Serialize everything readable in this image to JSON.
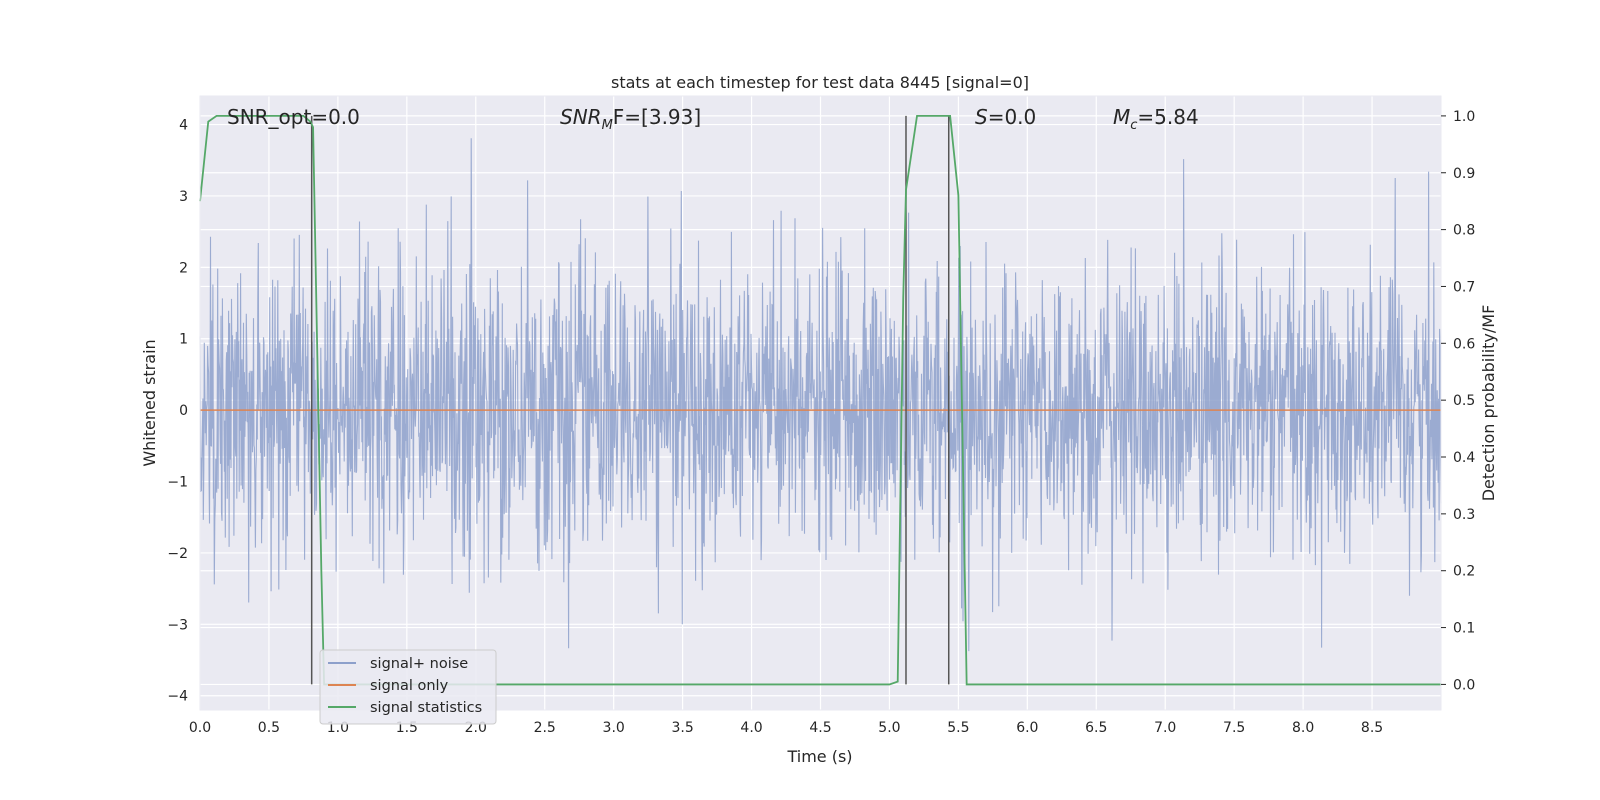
{
  "chart_data": {
    "type": "line",
    "title": "stats at each timestep for test data 8445 [signal=0]",
    "xlabel": "Time (s)",
    "ylabel": "Whitened strain",
    "ylabel_right": "Detection probability/MF",
    "xlim": [
      0.0,
      9.0
    ],
    "ylim": [
      -4.2,
      4.4
    ],
    "ylim_right": [
      -0.045,
      1.035
    ],
    "xticks": [
      "0.0",
      "0.5",
      "1.0",
      "1.5",
      "2.0",
      "2.5",
      "3.0",
      "3.5",
      "4.0",
      "4.5",
      "5.0",
      "5.5",
      "6.0",
      "6.5",
      "7.0",
      "7.5",
      "8.0",
      "8.5"
    ],
    "yticks": [
      "4",
      "3",
      "2",
      "1",
      "0",
      "−1",
      "−2",
      "−3",
      "−4"
    ],
    "yticks_right": [
      "1.0",
      "0.9",
      "0.8",
      "0.7",
      "0.6",
      "0.5",
      "0.4",
      "0.3",
      "0.2",
      "0.1",
      "0.0"
    ],
    "grid": true,
    "legend_position": "lower-left",
    "annotations": {
      "snr_opt": "SNR_opt=0.0",
      "snr_mf_prefix": "SNR",
      "snr_mf_sub": "M",
      "snr_mf_suffix": "F=[3.93]",
      "s_italic": "S",
      "s_value": "=0.0",
      "mc_prefix": "M",
      "mc_sub": "c",
      "mc_value": "=5.84"
    },
    "series": [
      {
        "name": "signal+ noise",
        "color": "#8da0cb",
        "axis": "left",
        "description_range": [
          -3.7,
          4.0
        ],
        "sample_rate_hz": 1024
      },
      {
        "name": "signal only",
        "color": "#dd8452",
        "axis": "left",
        "x": [
          0.0,
          9.0
        ],
        "y": [
          0.0,
          0.0
        ]
      },
      {
        "name": "signal statistics",
        "color": "#55a868",
        "axis": "right",
        "x": [
          0.0,
          0.06,
          0.12,
          0.2,
          0.5,
          0.75,
          0.8,
          0.82,
          0.88,
          0.9,
          1.0,
          2.0,
          3.0,
          4.0,
          5.0,
          5.06,
          5.1,
          5.12,
          5.2,
          5.44,
          5.5,
          5.56,
          5.6,
          6.0,
          7.0,
          8.0,
          9.0
        ],
        "y": [
          0.85,
          0.99,
          1.0,
          1.0,
          1.0,
          1.0,
          0.99,
          0.98,
          0.2,
          0.0,
          0.0,
          0.0,
          0.0,
          0.0,
          0.0,
          0.005,
          0.68,
          0.87,
          1.0,
          1.0,
          0.86,
          0.0,
          0.0,
          0.0,
          0.0,
          0.0,
          0.0
        ]
      }
    ],
    "vlines": [
      0.81,
      5.12,
      5.43
    ],
    "vline_color": "#555555"
  }
}
